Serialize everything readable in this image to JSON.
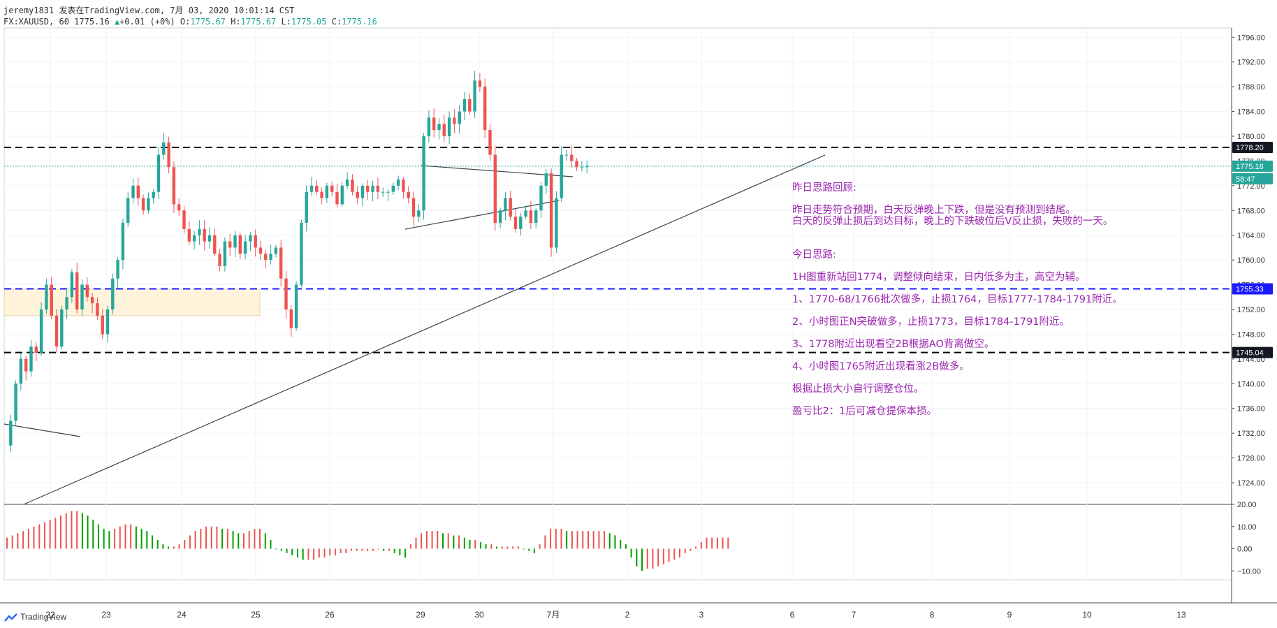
{
  "header": {
    "line1": "jeremy1831 发表在TradingView.com, 7月 03, 2020 10:01:14 CST",
    "symbol": "FX:XAUUSD, 60",
    "last": "1775.16",
    "change": "+0.01 (+0%)",
    "o_label": "O:",
    "o": "1775.67",
    "h_label": "H:",
    "h": "1775.67",
    "l_label": "L:",
    "l": "1775.05",
    "c_label": "C:",
    "c": "1775.16"
  },
  "branding": {
    "logo_text": "TradingView"
  },
  "colors": {
    "up": "#26a69a",
    "down": "#ef5350",
    "blue_line": "#1a1aff",
    "annotation": "#9c27b0",
    "zone": "#fff3dc",
    "trend": "#37474f"
  },
  "chart_data": {
    "type": "candlestick",
    "symbol": "FX:XAUUSD",
    "interval": "60",
    "x_tick_labels": [
      "22",
      "23",
      "24",
      "25",
      "26",
      "29",
      "30",
      "7月",
      "2",
      "3",
      "6",
      "7",
      "8",
      "9",
      "10",
      "13"
    ],
    "price_axis": {
      "ticks": [
        1796,
        1792,
        1788,
        1784,
        1780,
        1776,
        1772,
        1768,
        1764,
        1760,
        1756,
        1752,
        1748,
        1744,
        1740,
        1736,
        1732,
        1728,
        1724
      ],
      "tick_labels": [
        "1796.00",
        "1792.00",
        "1788.00",
        "1784.00",
        "1780.00",
        "1776.00",
        "1772.00",
        "1768.00",
        "1764.00",
        "1760.00",
        "1756.00",
        "1752.00",
        "1748.00",
        "1744.00",
        "1740.00",
        "1736.00",
        "1732.00",
        "1728.00",
        "1724.00"
      ],
      "ylim": [
        1720.5,
        1797.5
      ]
    },
    "price_labels": [
      {
        "value": 1778.2,
        "text": "1778.20",
        "style": "black"
      },
      {
        "value": 1775.16,
        "text": "1775.16",
        "style": "teal"
      },
      {
        "value": null,
        "text": "58:47",
        "style": "teal"
      },
      {
        "value": 1755.33,
        "text": "1755.33",
        "style": "blue"
      },
      {
        "value": 1745.04,
        "text": "1745.04",
        "style": "black"
      }
    ],
    "horizontal_lines": [
      {
        "value": 1778.2,
        "style": "dashed",
        "color": "#000000"
      },
      {
        "value": 1775.16,
        "style": "dotted",
        "color": "#26a69a"
      },
      {
        "value": 1755.33,
        "style": "dashed",
        "color": "#1a1aff"
      },
      {
        "value": 1745.04,
        "style": "dashed",
        "color": "#000000"
      }
    ],
    "zone": {
      "from_x": "21日晚",
      "to_x": "24日晚",
      "low": 1751.0,
      "high": 1755.3
    },
    "trend_lines": [
      {
        "name": "ascending-support",
        "from": [
          "22日早",
          1720.5
        ],
        "to": [
          "7月6日晚",
          1776.8
        ]
      },
      {
        "name": "triangle-upper",
        "from": [
          "29日",
          1775.0
        ],
        "to": [
          "7月1日",
          1773.0
        ]
      },
      {
        "name": "triangle-lower",
        "from": [
          "26日末",
          1765.5
        ],
        "to": [
          "7月1日",
          1769.5
        ]
      },
      {
        "name": "short-descending",
        "from": [
          "21日",
          1734.5
        ],
        "to": [
          "22日",
          1732.5
        ]
      }
    ],
    "ao": {
      "ticks": [
        20,
        10,
        0,
        -10
      ],
      "tick_labels": [
        "20.00",
        "10.00",
        "0.00",
        "−10.00"
      ],
      "ylim": [
        -14,
        20
      ]
    },
    "series": [
      {
        "name": "XAUUSD",
        "type": "candlestick",
        "segments": [
          {
            "points": [
              1730,
              1734,
              1740,
              1744,
              1742,
              1746,
              1745,
              1752,
              1756,
              1751,
              1746,
              1752,
              1754,
              1758,
              1752,
              1756,
              1754,
              1753,
              1751,
              1748,
              1752,
              1757,
              1760,
              1766,
              1770,
              1772,
              1770,
              1768,
              1770,
              1771,
              1777,
              1779,
              1775,
              1769,
              1768,
              1765,
              1763,
              1764,
              1765,
              1763,
              1764,
              1761,
              1759,
              1763,
              1762,
              1764,
              1761,
              1763,
              1764,
              1762,
              1761,
              1760,
              1761,
              1762,
              1757,
              1752,
              1749,
              1756,
              1766,
              1771,
              1772,
              1771,
              1770,
              1772,
              1771,
              1769,
              1772,
              1773,
              1771,
              1770,
              1772,
              1771,
              1772,
              1771,
              1771,
              1771,
              1772,
              1773,
              1771,
              1770,
              1767,
              1768,
              1780,
              1783,
              1781,
              1782,
              1780,
              1783,
              1782,
              1784,
              1786,
              1784,
              1789,
              1788,
              1781,
              1777,
              1766,
              1768,
              1770,
              1767,
              1765,
              1767,
              1768,
              1766,
              1768,
              1772,
              1774,
              1762,
              1770,
              1777,
              1777,
              1776,
              1775,
              1775,
              1775.2
            ]
          }
        ]
      },
      {
        "name": "AO",
        "type": "histogram",
        "values": [
          5,
          6,
          7,
          8,
          9,
          10,
          11,
          12,
          13,
          14,
          15,
          16,
          17,
          17,
          16,
          15,
          13,
          11,
          9,
          8,
          9,
          10,
          11,
          11,
          10,
          9,
          8,
          6,
          4,
          2,
          1,
          1,
          2,
          4,
          6,
          8,
          9,
          10,
          10,
          10,
          9,
          9,
          8,
          7,
          7,
          8,
          9,
          9,
          7,
          4,
          0,
          -1,
          -2,
          -3,
          -4,
          -5,
          -5,
          -5,
          -4,
          -4,
          -3,
          -3,
          -2,
          -2,
          -1,
          -1,
          -1,
          -1,
          -1,
          0,
          -1,
          -1,
          -2,
          -3,
          -4,
          2,
          5,
          7,
          8,
          8,
          8,
          7,
          7,
          6,
          6,
          5,
          4,
          4,
          3,
          2,
          2,
          1,
          1,
          1,
          1,
          1,
          0,
          -1,
          -2,
          2,
          6,
          9,
          9,
          9,
          8,
          8,
          8,
          8,
          8,
          8,
          8,
          8,
          7,
          6,
          4,
          2,
          -4,
          -8,
          -10,
          -9,
          -9,
          -8,
          -7,
          -6,
          -5,
          -4,
          -2,
          -1,
          1,
          3,
          5,
          5,
          5,
          5,
          5
        ]
      }
    ]
  },
  "annotation": {
    "title": "昨日思路回顾:",
    "lines": [
      "昨日走势符合预期，白天反弹晚上下跌，但是没有预测到结尾。",
      "白天的反弹止损后到达目标，晚上的下跌破位后V反止损，失败的一天。",
      "今日思路:",
      "1H图重新站回1774，调整倾向结束，日内低多为主，高空为辅。",
      "1、1770-68/1766批次做多，止损1764，目标1777-1784-1791附近。",
      "2、小时图正N突破做多，止损1773，目标1784-1791附近。",
      "3、1778附近出现看空2B根据AO背离做空。",
      "4、小时图1765附近出现看涨2B做多。",
      "根据止损大小自行调整仓位。",
      "盈亏比2：1后可减仓提保本损。"
    ]
  }
}
